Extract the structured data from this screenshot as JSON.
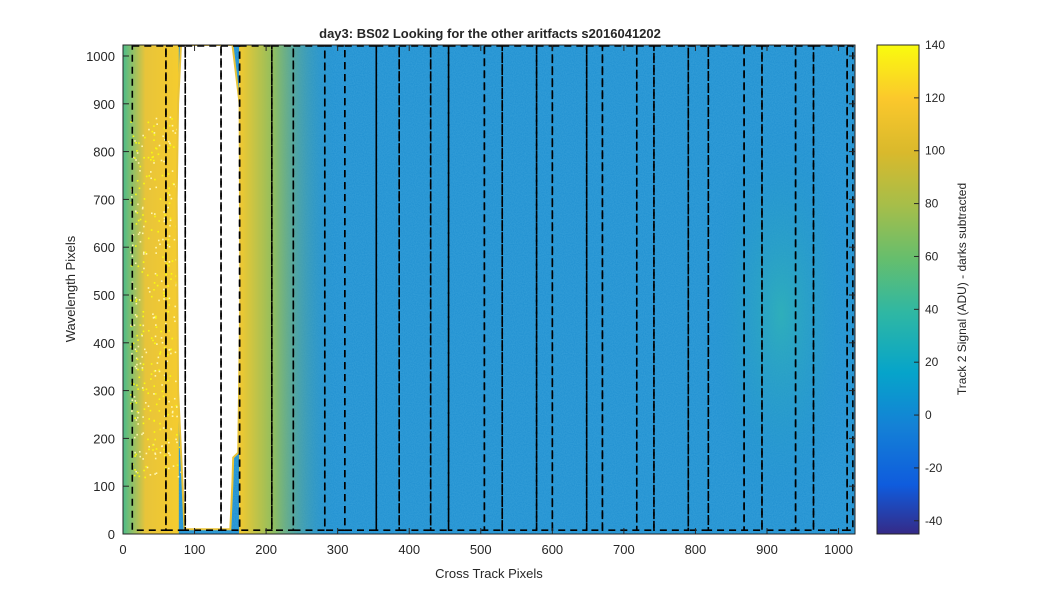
{
  "chart_data": {
    "type": "heatmap",
    "title": "day3: BS02  Looking for the other aritfacts  s2016041202",
    "xlabel": "Cross Track Pixels",
    "ylabel": "Wavelength Pixels",
    "xlim": [
      0,
      1023
    ],
    "ylim": [
      0,
      1023
    ],
    "x_ticks": [
      0,
      100,
      200,
      300,
      400,
      500,
      600,
      700,
      800,
      900,
      1000
    ],
    "y_ticks": [
      0,
      100,
      200,
      300,
      400,
      500,
      600,
      700,
      800,
      900,
      1000
    ],
    "colorbar": {
      "label": "Track 2 Signal (ADU) - darks subtracted",
      "clim": [
        -45,
        140
      ],
      "ticks": [
        140,
        120,
        100,
        80,
        60,
        40,
        20,
        0,
        -20,
        -40
      ],
      "colormap": "parula"
    },
    "colors": {
      "background_level": "#1e8fd0",
      "bright_level": "#f0c432",
      "saturated_level": "#f9fb0e",
      "dashed_lines": "#000000"
    },
    "dashed_boxes_x": [
      [
        13,
        60
      ],
      [
        60,
        87
      ],
      [
        87,
        137
      ],
      [
        137,
        163
      ],
      [
        163,
        208
      ],
      [
        208,
        238
      ],
      [
        238,
        282
      ],
      [
        282,
        310
      ],
      [
        310,
        354
      ],
      [
        354,
        386
      ],
      [
        386,
        430
      ],
      [
        430,
        455
      ],
      [
        455,
        505
      ],
      [
        505,
        530
      ],
      [
        530,
        578
      ],
      [
        578,
        600
      ],
      [
        600,
        648
      ],
      [
        648,
        670
      ],
      [
        670,
        718
      ],
      [
        718,
        742
      ],
      [
        742,
        790
      ],
      [
        790,
        818
      ],
      [
        818,
        868
      ],
      [
        868,
        893
      ],
      [
        893,
        940
      ],
      [
        940,
        965
      ],
      [
        965,
        1012
      ],
      [
        1012,
        1020
      ]
    ],
    "blank_region": {
      "x_range": [
        78,
        165
      ],
      "y_bottom": 10,
      "note_left_edge_at_top": 82,
      "note_right_edge_at_top": 150
    },
    "bright_zones": [
      {
        "x_center": 85,
        "width": 95,
        "peak": 135
      },
      {
        "x_center": 160,
        "width": 70,
        "peak": 120
      },
      {
        "x_center": 920,
        "width": 110,
        "peak": 40
      }
    ]
  }
}
